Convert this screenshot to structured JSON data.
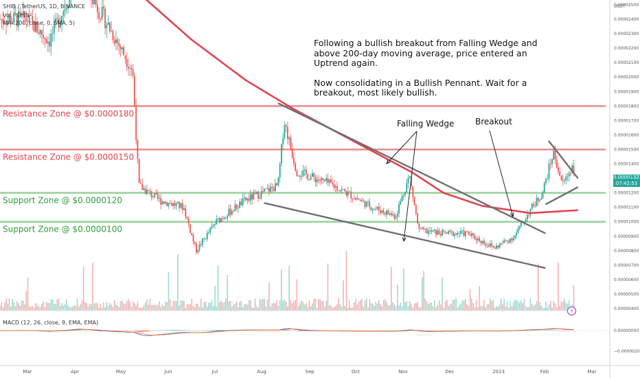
{
  "header": {
    "symbol_line": "SHIB / TetherUS, 1D, BINANCE",
    "volume_line": "Vol · SHIB",
    "ma_line": "MA (200, close, 0, SMA, 5)",
    "macd_line": "MACD (12, 26, close, 9, EMA, EMA)"
  },
  "annotation": {
    "para1": "Following a bullish breakout from Falling Wedge and above 200-day moving average, price entered an Uptrend again.",
    "para2": "Now consolidating in a Bullish Pennant. Wait for a breakout, most likely bullish."
  },
  "price_tag": {
    "value": "0.00001322",
    "countdown": "07:42:53"
  },
  "alert_icon": "lightning-icon",
  "colors": {
    "up": "#26a69a",
    "down": "#ef5350",
    "ma": "#e0434e",
    "resistance": "#e57373",
    "support": "#81c784",
    "trendline": "#6f6f6f",
    "macd": "#2962ff",
    "signal": "#ff6d00",
    "resistance_text": "#e0434e",
    "support_text": "#2e9e3a"
  },
  "chart_data": {
    "type": "candlestick",
    "title": "SHIB / TetherUS, 1D, BINANCE",
    "y_unit": "USDT",
    "ylim": [
      3.5e-06,
      2.55e-05
    ],
    "y_ticks": [
      "0.00002500",
      "0.00002400",
      "0.00002300",
      "0.00002200",
      "0.00002100",
      "0.00002000",
      "0.00001900",
      "0.00001800",
      "0.00001700",
      "0.00001600",
      "0.00001500",
      "0.00001400",
      "0.00001300",
      "0.00001200",
      "0.00001100",
      "0.00001000",
      "0.00000900",
      "0.00000800",
      "0.00000700",
      "0.00000600",
      "0.00000500",
      "0.00000400"
    ],
    "x_ticks": [
      "Mar",
      "Apr",
      "May",
      "Jun",
      "Jul",
      "Aug",
      "Sep",
      "Oct",
      "Nov",
      "Dec",
      "2023",
      "Feb",
      "Mar"
    ],
    "macd_ticks": [
      "0.00000000",
      "−0.00000200"
    ],
    "zones": [
      {
        "label": "Resistance Zone @ $0.0000180",
        "price": 1.8e-05,
        "kind": "resistance"
      },
      {
        "label": "Resistance Zone @ $0.0000150",
        "price": 1.5e-05,
        "kind": "resistance"
      },
      {
        "label": "Support Zone @ $0.0000120",
        "price": 1.2e-05,
        "kind": "support"
      },
      {
        "label": "Support Zone @ $0.0000100",
        "price": 1e-05,
        "kind": "support"
      }
    ],
    "callouts": [
      "Falling Wedge",
      "Breakout"
    ],
    "price_path_keypoints": [
      {
        "date": "2022-03-01",
        "price": 2.4e-05
      },
      {
        "date": "2022-03-15",
        "price": 2.25e-05
      },
      {
        "date": "2022-04-03",
        "price": 2.7e-05
      },
      {
        "date": "2022-04-20",
        "price": 2.4e-05
      },
      {
        "date": "2022-05-08",
        "price": 2.05e-05
      },
      {
        "date": "2022-05-12",
        "price": 1.25e-05
      },
      {
        "date": "2022-05-25",
        "price": 1.15e-05
      },
      {
        "date": "2022-06-10",
        "price": 1.1e-05
      },
      {
        "date": "2022-06-18",
        "price": 8e-06
      },
      {
        "date": "2022-07-01",
        "price": 1e-05
      },
      {
        "date": "2022-07-20",
        "price": 1.15e-05
      },
      {
        "date": "2022-08-10",
        "price": 1.25e-05
      },
      {
        "date": "2022-08-14",
        "price": 1.7e-05
      },
      {
        "date": "2022-08-22",
        "price": 1.35e-05
      },
      {
        "date": "2022-09-15",
        "price": 1.25e-05
      },
      {
        "date": "2022-10-10",
        "price": 1.1e-05
      },
      {
        "date": "2022-10-25",
        "price": 1.04e-05
      },
      {
        "date": "2022-11-03",
        "price": 1.32e-05
      },
      {
        "date": "2022-11-09",
        "price": 9.4e-06
      },
      {
        "date": "2022-11-25",
        "price": 9.2e-06
      },
      {
        "date": "2022-12-10",
        "price": 9.2e-06
      },
      {
        "date": "2022-12-28",
        "price": 8.2e-06
      },
      {
        "date": "2023-01-10",
        "price": 9e-06
      },
      {
        "date": "2023-01-20",
        "price": 1.08e-05
      },
      {
        "date": "2023-01-28",
        "price": 1.2e-05
      },
      {
        "date": "2023-02-04",
        "price": 1.48e-05
      },
      {
        "date": "2023-02-10",
        "price": 1.26e-05
      },
      {
        "date": "2023-02-16",
        "price": 1.38e-05
      },
      {
        "date": "2023-02-20",
        "price": 1.32e-05
      }
    ],
    "ma200_keypoints": [
      {
        "date": "2022-05-10",
        "price": 2.6e-05
      },
      {
        "date": "2022-06-15",
        "price": 2.26e-05
      },
      {
        "date": "2022-07-20",
        "price": 1.98e-05
      },
      {
        "date": "2022-08-20",
        "price": 1.78e-05
      },
      {
        "date": "2022-10-01",
        "price": 1.54e-05
      },
      {
        "date": "2022-11-05",
        "price": 1.34e-05
      },
      {
        "date": "2022-11-25",
        "price": 1.2e-05
      },
      {
        "date": "2022-12-20",
        "price": 1.11e-05
      },
      {
        "date": "2023-01-20",
        "price": 1.06e-05
      },
      {
        "date": "2023-02-20",
        "price": 1.08e-05
      }
    ],
    "trendlines": [
      {
        "name": "wedge-upper",
        "from": {
          "date": "2022-08-10",
          "price": 1.82e-05
        },
        "to": {
          "date": "2023-01-30",
          "price": 9.2e-06
        }
      },
      {
        "name": "wedge-lower",
        "from": {
          "date": "2022-08-01",
          "price": 1.13e-05
        },
        "to": {
          "date": "2023-01-30",
          "price": 6.8e-06
        }
      },
      {
        "name": "pennant-upper",
        "from": {
          "date": "2023-02-01",
          "price": 1.56e-05
        },
        "to": {
          "date": "2023-02-20",
          "price": 1.3e-05
        }
      },
      {
        "name": "pennant-lower",
        "from": {
          "date": "2023-01-30",
          "price": 1.12e-05
        },
        "to": {
          "date": "2023-02-20",
          "price": 1.24e-05
        }
      }
    ],
    "grid": false
  }
}
